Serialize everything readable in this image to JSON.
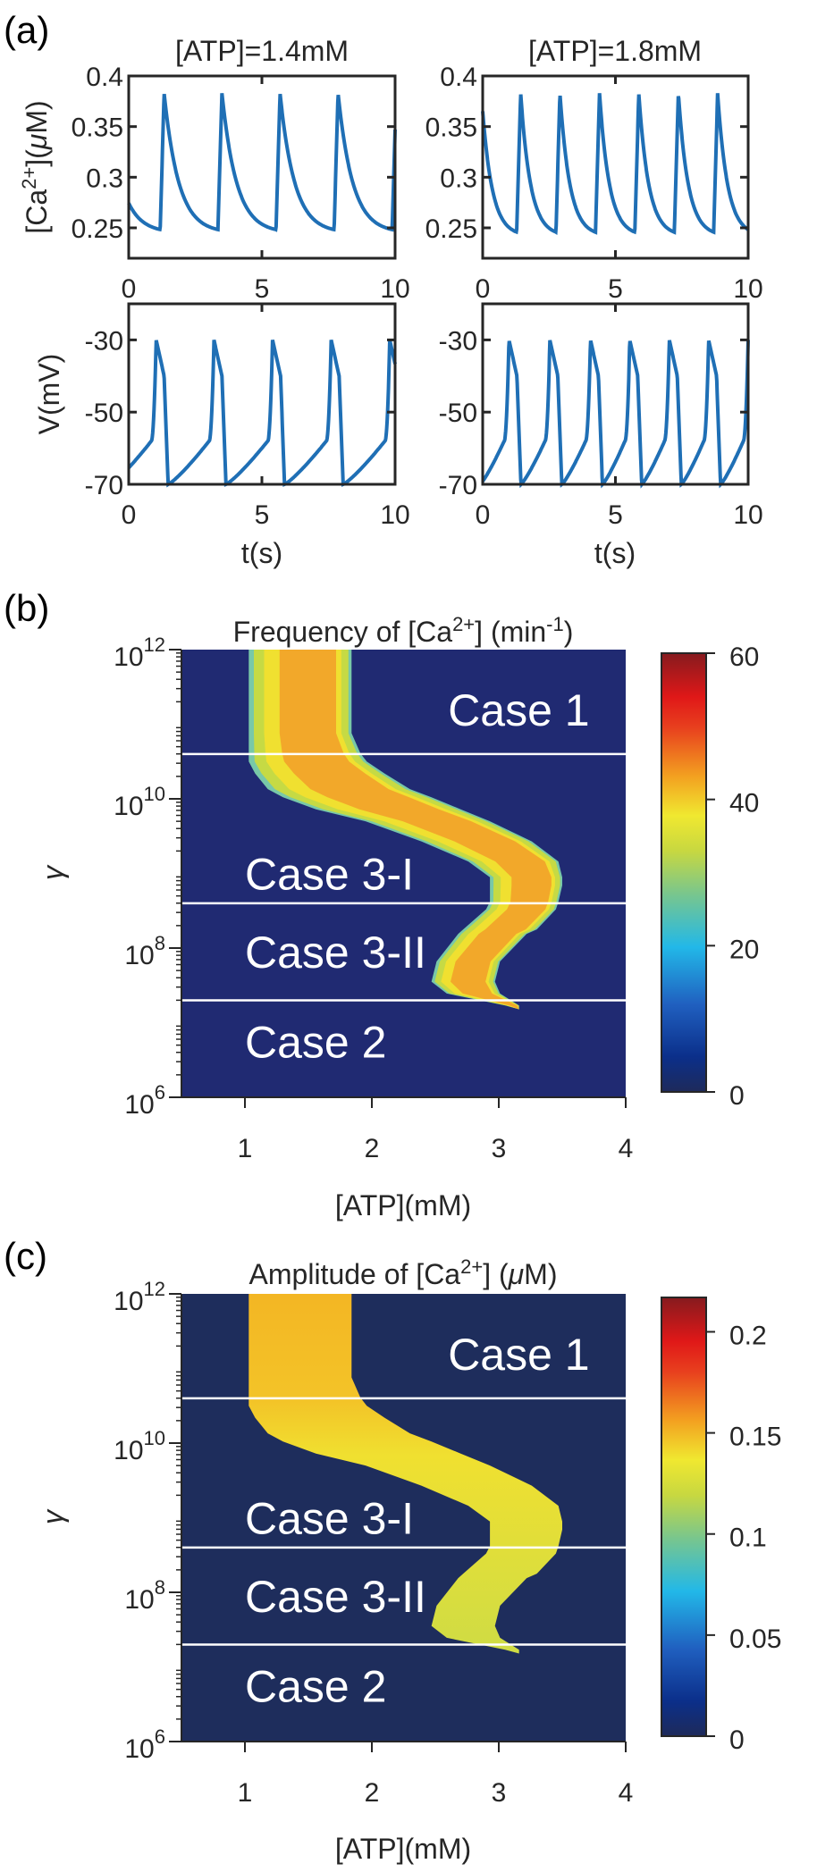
{
  "chart_data": [
    {
      "panel": "(a)",
      "type": "line",
      "columns": [
        {
          "title": "[ATP]=1.4mM"
        },
        {
          "title": "[ATP]=1.8mM"
        }
      ],
      "rows": [
        {
          "ylabel_main": "[Ca",
          "ylabel_sup": "2+",
          "ylabel_rest": "](",
          "ylabel_mu": "μ",
          "ylabel_end": "M)",
          "ylim": [
            0.22,
            0.4
          ],
          "yticks": [
            "0.25",
            "0.3",
            "0.35",
            "0.4"
          ],
          "ytick_values": [
            0.25,
            0.3,
            0.35,
            0.4
          ]
        },
        {
          "ylabel": "V(mV)",
          "ylim": [
            -70,
            -20
          ],
          "yticks": [
            "-30",
            "-50",
            "-70"
          ],
          "ytick_values": [
            -30,
            -50,
            -70
          ]
        }
      ],
      "xlabel": "t(s)",
      "xlim": [
        0,
        10
      ],
      "xticks": [
        "0",
        "5",
        "10"
      ],
      "xtick_values": [
        0,
        5,
        10
      ],
      "series": [
        {
          "name": "Ca ATP1.4",
          "kind": "ca",
          "peak_times": [
            1.33,
            3.5,
            5.68,
            7.86,
            10.04
          ],
          "min": 0.245,
          "max": 0.383,
          "color": "#1f6fb5"
        },
        {
          "name": "Ca ATP1.8",
          "kind": "ca",
          "peak_times": [
            1.43,
            2.91,
            4.4,
            5.88,
            7.37,
            8.85
          ],
          "min": 0.242,
          "max": 0.383,
          "color": "#1f6fb5"
        },
        {
          "name": "V ATP1.4",
          "kind": "v",
          "spike_times": [
            1.03,
            3.2,
            5.4,
            7.6,
            9.8
          ],
          "min": -70,
          "max": -30,
          "color": "#1f6fb5"
        },
        {
          "name": "V ATP1.8",
          "kind": "v",
          "spike_times": [
            0.99,
            2.53,
            4.06,
            5.54,
            7.03,
            8.51,
            10.0
          ],
          "min": -70,
          "max": -30,
          "color": "#1f6fb5"
        }
      ]
    },
    {
      "panel": "(b)",
      "type": "heatmap",
      "title_main": "Frequency of [Ca",
      "title_sup": "2+",
      "title_mid": "] (min",
      "title_sup2": "-1",
      "title_end": ")",
      "xlabel": "[ATP](mM)",
      "ylabel": "γ",
      "xlim": [
        0.5,
        4
      ],
      "xticks": [
        "1",
        "2",
        "3",
        "4"
      ],
      "xtick_values": [
        1,
        2,
        3,
        4
      ],
      "ylim_log10": [
        6,
        12
      ],
      "yticks": [
        {
          "base": "10",
          "exp": "12",
          "v": 12
        },
        {
          "base": "10",
          "exp": "10",
          "v": 10
        },
        {
          "base": "10",
          "exp": "8",
          "v": 8
        },
        {
          "base": "10",
          "exp": "6",
          "v": 6
        }
      ],
      "colorbar": {
        "range": [
          0,
          60
        ],
        "ticks": [
          "0",
          "20",
          "40",
          "60"
        ],
        "tick_values": [
          0,
          20,
          40,
          60
        ]
      },
      "background_color": "#202a72",
      "band_fill": "frequency",
      "case_lines_log10": [
        10.6,
        8.6,
        7.3
      ],
      "cases": [
        {
          "label": "Case 1",
          "log10_gamma": 11.2,
          "atp": 2.6
        },
        {
          "label": "Case 3-I",
          "log10_gamma": 9.0,
          "atp": 1.0
        },
        {
          "label": "Case 3-II",
          "log10_gamma": 7.95,
          "atp": 1.0
        },
        {
          "label": "Case 2",
          "log10_gamma": 6.75,
          "atp": 1.0
        }
      ],
      "band": {
        "log10_gamma": [
          12,
          10.88,
          10.61,
          10.5,
          10.34,
          10.13,
          10.02,
          9.86,
          9.7,
          9.43,
          9.16,
          8.95,
          8.84,
          8.62,
          8.52,
          8.25,
          8.19,
          7.82,
          7.55,
          7.39,
          7.23,
          7.18
        ],
        "left_atp": [
          1.03,
          1.03,
          1.03,
          1.03,
          1.08,
          1.18,
          1.3,
          1.56,
          1.95,
          2.39,
          2.76,
          2.93,
          2.93,
          2.93,
          2.9,
          2.72,
          2.68,
          2.51,
          2.47,
          2.59,
          3.05,
          3.16
        ],
        "right_atp": [
          1.84,
          1.84,
          1.91,
          1.96,
          2.1,
          2.3,
          2.47,
          2.7,
          2.93,
          3.26,
          3.47,
          3.5,
          3.5,
          3.47,
          3.45,
          3.3,
          3.22,
          3.01,
          2.97,
          3.01,
          3.16,
          3.16
        ]
      }
    },
    {
      "panel": "(c)",
      "type": "heatmap",
      "title_main": "Amplitude of [Ca",
      "title_sup": "2+",
      "title_mid": "] (",
      "title_mu": "μ",
      "title_end": "M)",
      "xlabel": "[ATP](mM)",
      "ylabel": "γ",
      "xlim": [
        0.5,
        4
      ],
      "xticks": [
        "1",
        "2",
        "3",
        "4"
      ],
      "xtick_values": [
        1,
        2,
        3,
        4
      ],
      "ylim_log10": [
        6,
        12
      ],
      "yticks": [
        {
          "base": "10",
          "exp": "12",
          "v": 12
        },
        {
          "base": "10",
          "exp": "10",
          "v": 10
        },
        {
          "base": "10",
          "exp": "8",
          "v": 8
        },
        {
          "base": "10",
          "exp": "6",
          "v": 6
        }
      ],
      "colorbar": {
        "range": [
          0,
          0.217
        ],
        "ticks": [
          "0",
          "0.05",
          "0.1",
          "0.15",
          "0.2"
        ],
        "tick_values": [
          0,
          0.05,
          0.1,
          0.15,
          0.2
        ]
      },
      "background_color": "#1e2d5c",
      "band_fill": "amplitude",
      "case_lines_log10": [
        10.6,
        8.6,
        7.3
      ],
      "cases": [
        {
          "label": "Case 1",
          "log10_gamma": 11.2,
          "atp": 2.6
        },
        {
          "label": "Case 3-I",
          "log10_gamma": 9.0,
          "atp": 1.0
        },
        {
          "label": "Case 3-II",
          "log10_gamma": 7.95,
          "atp": 1.0
        },
        {
          "label": "Case 2",
          "log10_gamma": 6.75,
          "atp": 1.0
        }
      ]
    }
  ]
}
